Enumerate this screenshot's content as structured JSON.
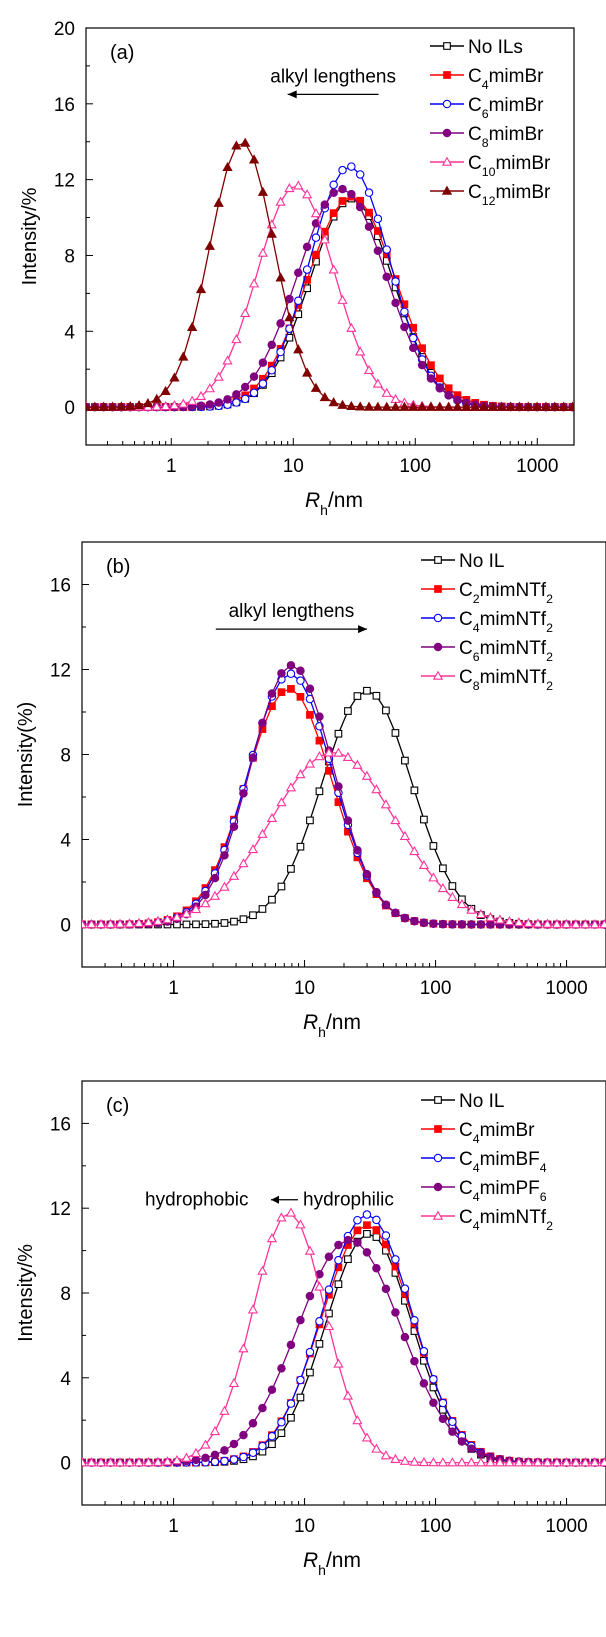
{
  "chart_data": [
    {
      "type": "line",
      "panel_label": "(a)",
      "xlabel_main": "R",
      "xlabel_sub": "h",
      "xlabel_unit": "/nm",
      "ylabel": "Intensity/%",
      "x_scale": "log",
      "xlim": [
        0.2,
        2000
      ],
      "ylim": [
        -2,
        20
      ],
      "x_ticks": [
        1,
        10,
        100,
        1000
      ],
      "x_tick_labels": [
        "1",
        "10",
        "100",
        "1000"
      ],
      "y_ticks": [
        0,
        4,
        8,
        12,
        16,
        20
      ],
      "y_tick_labels": [
        "0",
        "4",
        "8",
        "12",
        "16",
        "20"
      ],
      "annotation": {
        "text": "alkyl lengthens",
        "arrow_direction": "left",
        "x_from": 50,
        "x_to": 9,
        "y": 16.5
      },
      "legend_position": "top-right",
      "series": [
        {
          "name": "No ILs",
          "name_parts": [
            [
              "No ILs",
              ""
            ]
          ],
          "color": "#000000",
          "marker": "square",
          "filled": false,
          "mean": 30,
          "sigma": 0.52,
          "peak": 11.0,
          "tail": null
        },
        {
          "name": "C4mimBr",
          "name_parts": [
            [
              "C",
              ""
            ],
            [
              "4",
              "sub"
            ],
            [
              "mimBr",
              ""
            ]
          ],
          "color": "#ff0000",
          "marker": "square",
          "filled": true,
          "mean": 30,
          "sigma": 0.55,
          "peak": 11.1,
          "tail": {
            "amp": 0.45,
            "from": 4.5,
            "to": 9
          }
        },
        {
          "name": "C6mimBr",
          "name_parts": [
            [
              "C",
              ""
            ],
            [
              "6",
              "sub"
            ],
            [
              "mimBr",
              ""
            ]
          ],
          "color": "#0000ff",
          "marker": "circle",
          "filled": false,
          "mean": 29,
          "sigma": 0.5,
          "peak": 12.7,
          "tail": null
        },
        {
          "name": "C8mimBr",
          "name_parts": [
            [
              "C",
              ""
            ],
            [
              "8",
              "sub"
            ],
            [
              "mimBr",
              ""
            ]
          ],
          "color": "#800080",
          "marker": "circle",
          "filled": true,
          "mean": 25,
          "sigma": 0.55,
          "peak": 11.5,
          "tail": null
        },
        {
          "name": "C10mimBr",
          "name_parts": [
            [
              "C",
              ""
            ],
            [
              "10",
              "sub"
            ],
            [
              "mimBr",
              ""
            ]
          ],
          "color": "#ff3399",
          "marker": "triangle",
          "filled": false,
          "mean": 10.5,
          "sigma": 0.48,
          "peak": 11.7,
          "tail": null
        },
        {
          "name": "C12mimBr",
          "name_parts": [
            [
              "C",
              ""
            ],
            [
              "12",
              "sub"
            ],
            [
              "mimBr",
              ""
            ]
          ],
          "color": "#800000",
          "marker": "triangle",
          "filled": true,
          "mean": 3.8,
          "sigma": 0.4,
          "peak": 14.0,
          "tail": null
        }
      ]
    },
    {
      "type": "line",
      "panel_label": "(b)",
      "xlabel_main": "R",
      "xlabel_sub": "h",
      "xlabel_unit": "/nm",
      "ylabel": "Intensity(%)",
      "x_scale": "log",
      "xlim": [
        0.2,
        2000
      ],
      "ylim": [
        -2,
        18
      ],
      "x_ticks": [
        1,
        10,
        100,
        1000
      ],
      "x_tick_labels": [
        "1",
        "10",
        "100",
        "1000"
      ],
      "y_ticks": [
        0,
        4,
        8,
        12,
        16
      ],
      "y_tick_labels": [
        "0",
        "4",
        "8",
        "12",
        "16"
      ],
      "annotation": {
        "text": "alkyl lengthens",
        "arrow_direction": "right",
        "x_from": 2.1,
        "x_to": 30,
        "y": 13.9
      },
      "legend_position": "top-right",
      "series": [
        {
          "name": "No IL",
          "name_parts": [
            [
              "No IL",
              ""
            ]
          ],
          "color": "#000000",
          "marker": "square",
          "filled": false,
          "mean": 30,
          "sigma": 0.52,
          "peak": 11.0,
          "tail": {
            "amp": 0.2,
            "from": 3.5,
            "to": 9
          }
        },
        {
          "name": "C2mimNTf2",
          "name_parts": [
            [
              "C",
              ""
            ],
            [
              "2",
              "sub"
            ],
            [
              "mimNTf",
              ""
            ],
            [
              "2",
              "sub"
            ]
          ],
          "color": "#ff0000",
          "marker": "square",
          "filled": true,
          "mean": 7.6,
          "sigma": 0.5,
          "peak": 11.1,
          "tail": null
        },
        {
          "name": "C4mimNTf2",
          "name_parts": [
            [
              "C",
              ""
            ],
            [
              "4",
              "sub"
            ],
            [
              "mimNTf",
              ""
            ],
            [
              "2",
              "sub"
            ]
          ],
          "color": "#0000ff",
          "marker": "circle",
          "filled": false,
          "mean": 7.8,
          "sigma": 0.49,
          "peak": 11.8,
          "tail": null
        },
        {
          "name": "C6mimNTf2",
          "name_parts": [
            [
              "C",
              ""
            ],
            [
              "6",
              "sub"
            ],
            [
              "mimNTf",
              ""
            ],
            [
              "2",
              "sub"
            ]
          ],
          "color": "#800080",
          "marker": "circle",
          "filled": true,
          "mean": 8.0,
          "sigma": 0.48,
          "peak": 12.2,
          "tail": null
        },
        {
          "name": "C8mimNTf2",
          "name_parts": [
            [
              "C",
              ""
            ],
            [
              "8",
              "sub"
            ],
            [
              "mimNTf",
              ""
            ],
            [
              "2",
              "sub"
            ]
          ],
          "color": "#ff3399",
          "marker": "triangle",
          "filled": false,
          "mean": 16.5,
          "sigma": 0.72,
          "peak": 8.1,
          "tail": null
        }
      ]
    },
    {
      "type": "line",
      "panel_label": "(c)",
      "xlabel_main": "R",
      "xlabel_sub": "h",
      "xlabel_unit": "/nm",
      "ylabel": "Intensity/%",
      "x_scale": "log",
      "xlim": [
        0.2,
        2000
      ],
      "ylim": [
        -2,
        18
      ],
      "x_ticks": [
        1,
        10,
        100,
        1000
      ],
      "x_tick_labels": [
        "1",
        "10",
        "100",
        "1000"
      ],
      "y_ticks": [
        0,
        4,
        8,
        12,
        16
      ],
      "y_tick_labels": [
        "0",
        "4",
        "8",
        "12",
        "16"
      ],
      "annotation": {
        "text_left": "hydrophobic",
        "text_right": "hydrophilic",
        "arrow_direction": "left",
        "y": 12.4
      },
      "legend_position": "top-right",
      "series": [
        {
          "name": "No IL",
          "name_parts": [
            [
              "No IL",
              ""
            ]
          ],
          "color": "#000000",
          "marker": "square",
          "filled": false,
          "mean": 31,
          "sigma": 0.5,
          "peak": 10.8,
          "tail": null
        },
        {
          "name": "C4mimBr",
          "name_parts": [
            [
              "C",
              ""
            ],
            [
              "4",
              "sub"
            ],
            [
              "mimBr",
              ""
            ]
          ],
          "color": "#ff0000",
          "marker": "square",
          "filled": true,
          "mean": 30,
          "sigma": 0.53,
          "peak": 11.2,
          "tail": {
            "amp": 0.5,
            "from": 4,
            "to": 10
          }
        },
        {
          "name": "C4mimBF4",
          "name_parts": [
            [
              "C",
              ""
            ],
            [
              "4",
              "sub"
            ],
            [
              "mimBF",
              ""
            ],
            [
              "4",
              "sub"
            ]
          ],
          "color": "#0000ff",
          "marker": "circle",
          "filled": false,
          "mean": 30,
          "sigma": 0.52,
          "peak": 11.7,
          "tail": null
        },
        {
          "name": "C4mimPF6",
          "name_parts": [
            [
              "C",
              ""
            ],
            [
              "4",
              "sub"
            ],
            [
              "mimPF",
              ""
            ],
            [
              "6",
              "sub"
            ]
          ],
          "color": "#800080",
          "marker": "circle",
          "filled": true,
          "mean": 22,
          "sigma": 0.6,
          "peak": 10.5,
          "tail": null
        },
        {
          "name": "C4mimNTf2",
          "name_parts": [
            [
              "C",
              ""
            ],
            [
              "4",
              "sub"
            ],
            [
              "mimNTf",
              ""
            ],
            [
              "2",
              "sub"
            ]
          ],
          "color": "#ff3399",
          "marker": "triangle",
          "filled": false,
          "mean": 7.6,
          "sigma": 0.42,
          "peak": 11.8,
          "tail": null
        }
      ]
    }
  ]
}
